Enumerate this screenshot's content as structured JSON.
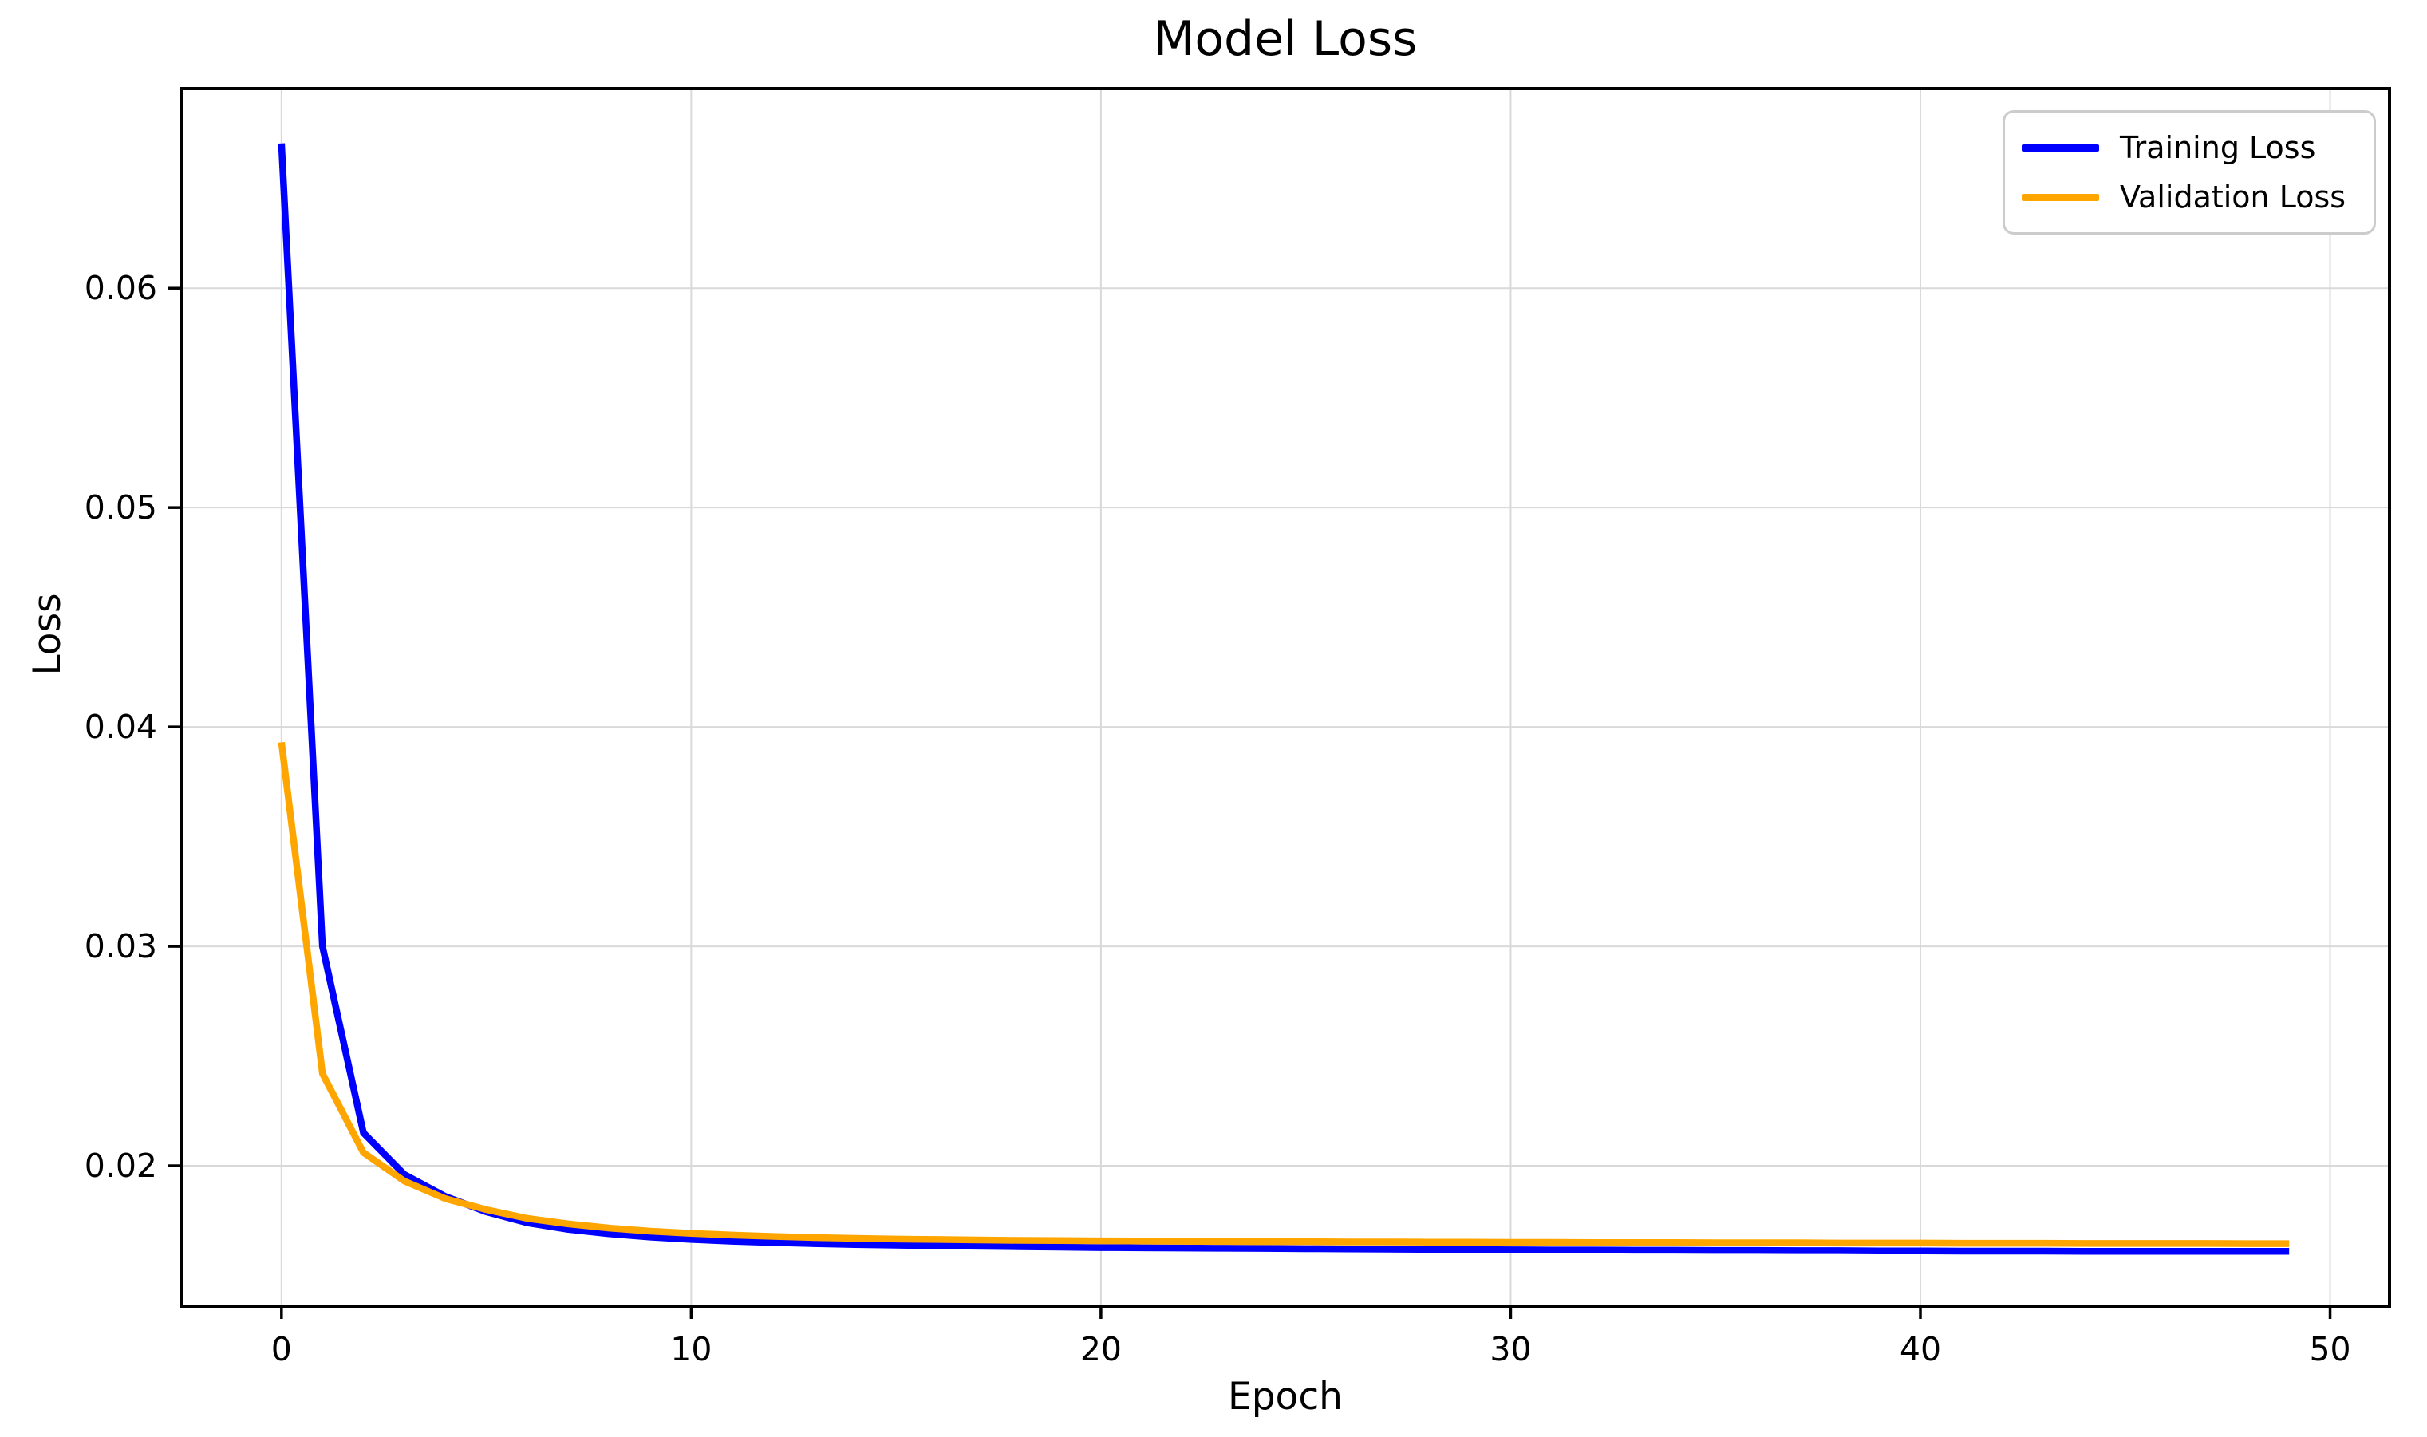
{
  "chart_data": {
    "type": "line",
    "title": "Model Loss",
    "xlabel": "Epoch",
    "ylabel": "Loss",
    "grid": true,
    "legend_position": "upper right",
    "background_color": "#ffffff",
    "grid_color": "#d9d9d9",
    "spine_color": "#000000",
    "xlim": [
      -2.45,
      51.45
    ],
    "ylim": [
      0.0136,
      0.0691
    ],
    "xticks": [
      0,
      10,
      20,
      30,
      40,
      50
    ],
    "xtick_labels": [
      "0",
      "10",
      "20",
      "30",
      "40",
      "50"
    ],
    "yticks": [
      0.02,
      0.03,
      0.04,
      0.05,
      0.06
    ],
    "ytick_labels": [
      "0.02",
      "0.03",
      "0.04",
      "0.05",
      "0.06"
    ],
    "x": [
      0,
      1,
      2,
      3,
      4,
      5,
      6,
      7,
      8,
      9,
      10,
      11,
      12,
      13,
      14,
      15,
      16,
      17,
      18,
      19,
      20,
      21,
      22,
      23,
      24,
      25,
      26,
      27,
      28,
      29,
      30,
      31,
      32,
      33,
      34,
      35,
      36,
      37,
      38,
      39,
      40,
      41,
      42,
      43,
      44,
      45,
      46,
      47,
      48,
      49
    ],
    "series": [
      {
        "name": "Training Loss",
        "color": "#0000FF",
        "values": [
          0.0666,
          0.03,
          0.0215,
          0.0196,
          0.0186,
          0.0179,
          0.0174,
          0.0171,
          0.0169,
          0.01675,
          0.01664,
          0.01656,
          0.0165,
          0.01645,
          0.01641,
          0.01638,
          0.01635,
          0.01633,
          0.01631,
          0.01629,
          0.01627,
          0.01626,
          0.01625,
          0.01624,
          0.01623,
          0.01622,
          0.01621,
          0.0162,
          0.01619,
          0.01618,
          0.01617,
          0.01616,
          0.01616,
          0.01615,
          0.01615,
          0.01614,
          0.01614,
          0.01613,
          0.01613,
          0.01612,
          0.01612,
          0.01611,
          0.01611,
          0.01611,
          0.0161,
          0.0161,
          0.0161,
          0.0161,
          0.0161,
          0.0161
        ]
      },
      {
        "name": "Validation Loss",
        "color": "#FFA500",
        "values": [
          0.0393,
          0.0242,
          0.0206,
          0.0193,
          0.0185,
          0.018,
          0.0176,
          0.01735,
          0.01716,
          0.01702,
          0.01692,
          0.01684,
          0.01678,
          0.01673,
          0.01669,
          0.01666,
          0.01664,
          0.01662,
          0.0166,
          0.01659,
          0.01658,
          0.01657,
          0.01656,
          0.01655,
          0.01654,
          0.01654,
          0.01653,
          0.01653,
          0.01652,
          0.01652,
          0.01651,
          0.01651,
          0.0165,
          0.0165,
          0.0165,
          0.01649,
          0.01649,
          0.01649,
          0.01648,
          0.01648,
          0.01648,
          0.01647,
          0.01647,
          0.01647,
          0.01646,
          0.01646,
          0.01646,
          0.01646,
          0.01645,
          0.01645
        ]
      }
    ]
  }
}
